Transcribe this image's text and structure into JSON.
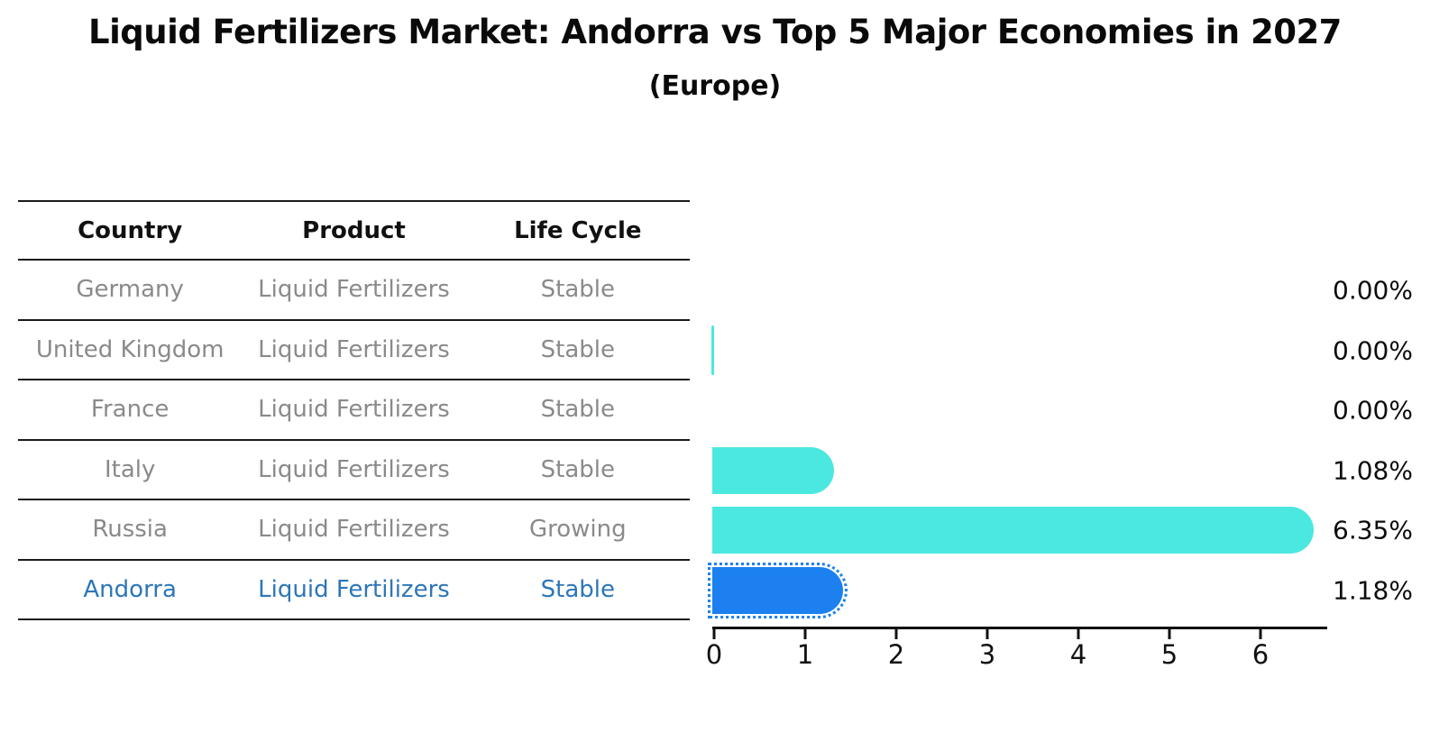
{
  "title": "Liquid Fertilizers Market: Andorra vs Top 5 Major Economies in 2027",
  "subtitle": "(Europe)",
  "table": {
    "headers": [
      "Country",
      "Product",
      "Life Cycle"
    ],
    "rows": [
      {
        "country": "Germany",
        "product": "Liquid Fertilizers",
        "life_cycle": "Stable",
        "highlight": false
      },
      {
        "country": "United Kingdom",
        "product": "Liquid Fertilizers",
        "life_cycle": "Stable",
        "highlight": false
      },
      {
        "country": "France",
        "product": "Liquid Fertilizers",
        "life_cycle": "Stable",
        "highlight": false
      },
      {
        "country": "Italy",
        "product": "Liquid Fertilizers",
        "life_cycle": "Stable",
        "highlight": false
      },
      {
        "country": "Russia",
        "product": "Liquid Fertilizers",
        "life_cycle": "Growing",
        "highlight": false
      },
      {
        "country": "Andorra",
        "product": "Liquid Fertilizers",
        "life_cycle": "Stable",
        "highlight": true
      }
    ]
  },
  "chart_data": {
    "type": "bar",
    "orientation": "horizontal",
    "title": "Liquid Fertilizers Market: Andorra vs Top 5 Major Economies in 2027 (Europe)",
    "xlabel": "",
    "ylabel": "",
    "xlim": [
      0,
      6.73
    ],
    "xticks": [
      0,
      1,
      2,
      3,
      4,
      5,
      6
    ],
    "grid": false,
    "legend": "none",
    "categories": [
      "Germany",
      "United Kingdom",
      "France",
      "Italy",
      "Russia",
      "Andorra"
    ],
    "series": [
      {
        "category": "Germany",
        "value": 0.0,
        "label": "0.00%",
        "color": "cyan",
        "marker": "none",
        "dotted": false
      },
      {
        "category": "United Kingdom",
        "value": 0.0,
        "label": "0.00%",
        "color": "cyan",
        "marker": "line",
        "dotted": false
      },
      {
        "category": "France",
        "value": 0.0,
        "label": "0.00%",
        "color": "cyan",
        "marker": "none",
        "dotted": false
      },
      {
        "category": "Italy",
        "value": 1.08,
        "label": "1.08%",
        "color": "cyan",
        "marker": "bar",
        "dotted": false
      },
      {
        "category": "Russia",
        "value": 6.35,
        "label": "6.35%",
        "color": "cyan",
        "marker": "bar",
        "dotted": false
      },
      {
        "category": "Andorra",
        "value": 1.18,
        "label": "1.18%",
        "color": "blue",
        "marker": "bar",
        "dotted": true
      }
    ]
  },
  "colors": {
    "cyan": "#4be8e0",
    "blue": "#1c80f0",
    "highlight_text": "#2d76b8",
    "row_text": "#8a8a8a",
    "header_text": "#111111",
    "table_line": "#1a1a1a",
    "axis": "#111111",
    "value_label_text": "#0d0d0d"
  }
}
